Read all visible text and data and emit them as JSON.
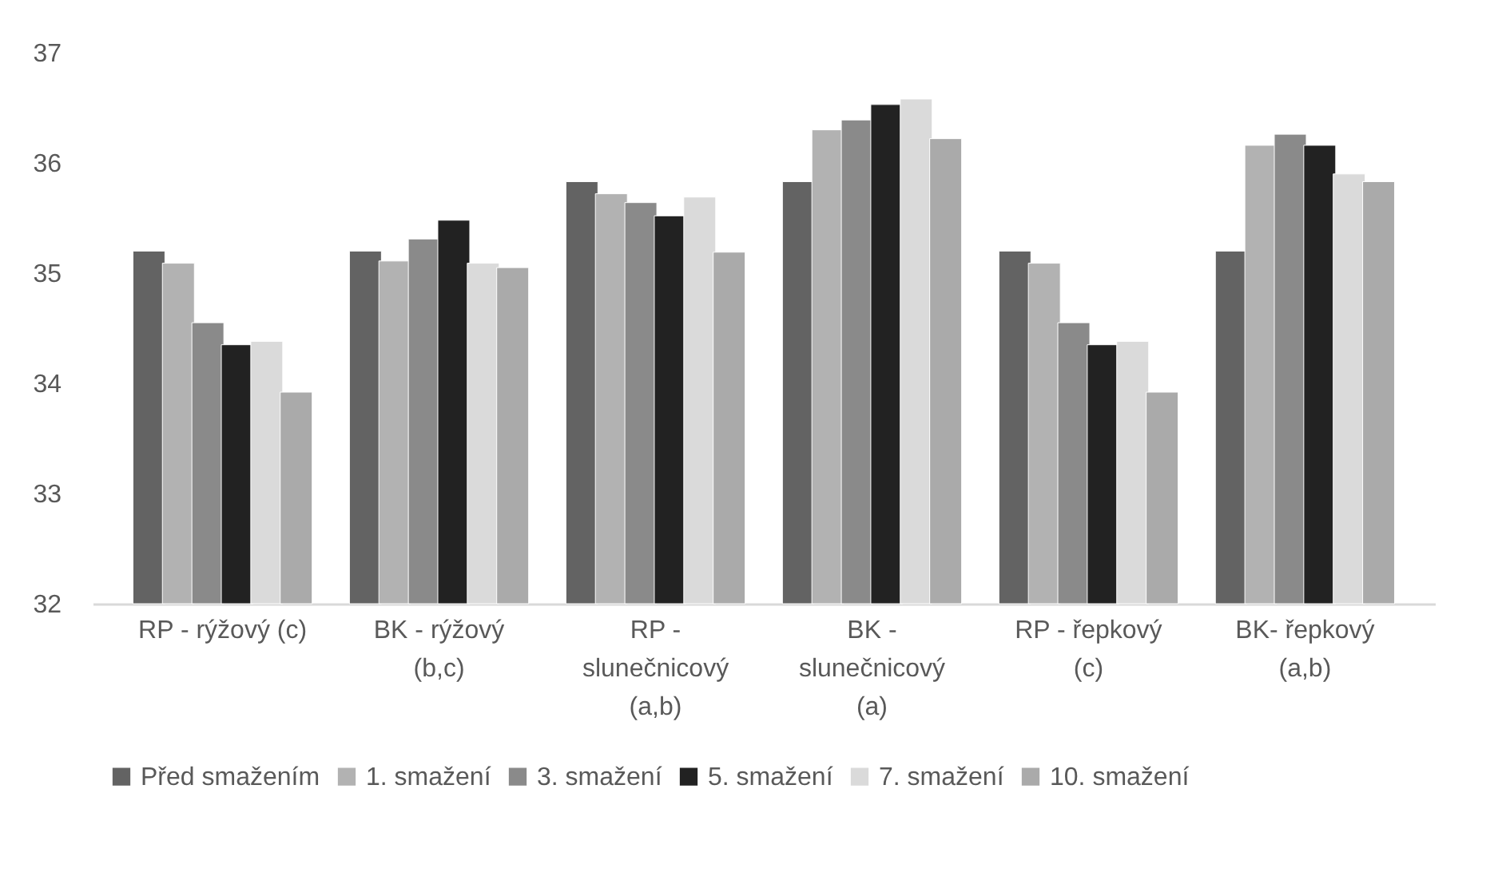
{
  "chart_data": {
    "type": "bar",
    "categories": [
      "RP - rýžový (c)",
      "BK - rýžový (b,c)",
      "RP - slunečnicový (a,b)",
      "BK - slunečnicový (a)",
      "RP - řepkový (c)",
      "BK- řepkový (a,b)"
    ],
    "series": [
      {
        "name": "Před smažením",
        "color": "#636363",
        "values": [
          35.2,
          35.2,
          35.83,
          35.83,
          35.2,
          35.2
        ]
      },
      {
        "name": "1. smažení",
        "color": "#b2b2b2",
        "values": [
          35.09,
          35.11,
          35.72,
          36.3,
          35.09,
          36.16
        ]
      },
      {
        "name": "3. smažení",
        "color": "#8a8a8a",
        "values": [
          34.55,
          35.31,
          35.64,
          36.39,
          34.55,
          36.26
        ]
      },
      {
        "name": "5. smažení",
        "color": "#222222",
        "values": [
          34.35,
          35.48,
          35.52,
          36.53,
          34.35,
          36.16
        ]
      },
      {
        "name": "7. smažení",
        "color": "#dadada",
        "values": [
          34.38,
          35.09,
          35.69,
          36.58,
          34.38,
          35.9
        ]
      },
      {
        "name": "10. smažení",
        "color": "#aaaaaa",
        "values": [
          33.92,
          35.05,
          35.19,
          36.22,
          33.92,
          35.83
        ]
      }
    ],
    "ylim": [
      32,
      37
    ],
    "yticks": [
      32,
      33,
      34,
      35,
      36,
      37
    ],
    "grid": false,
    "legend": "bottom"
  }
}
